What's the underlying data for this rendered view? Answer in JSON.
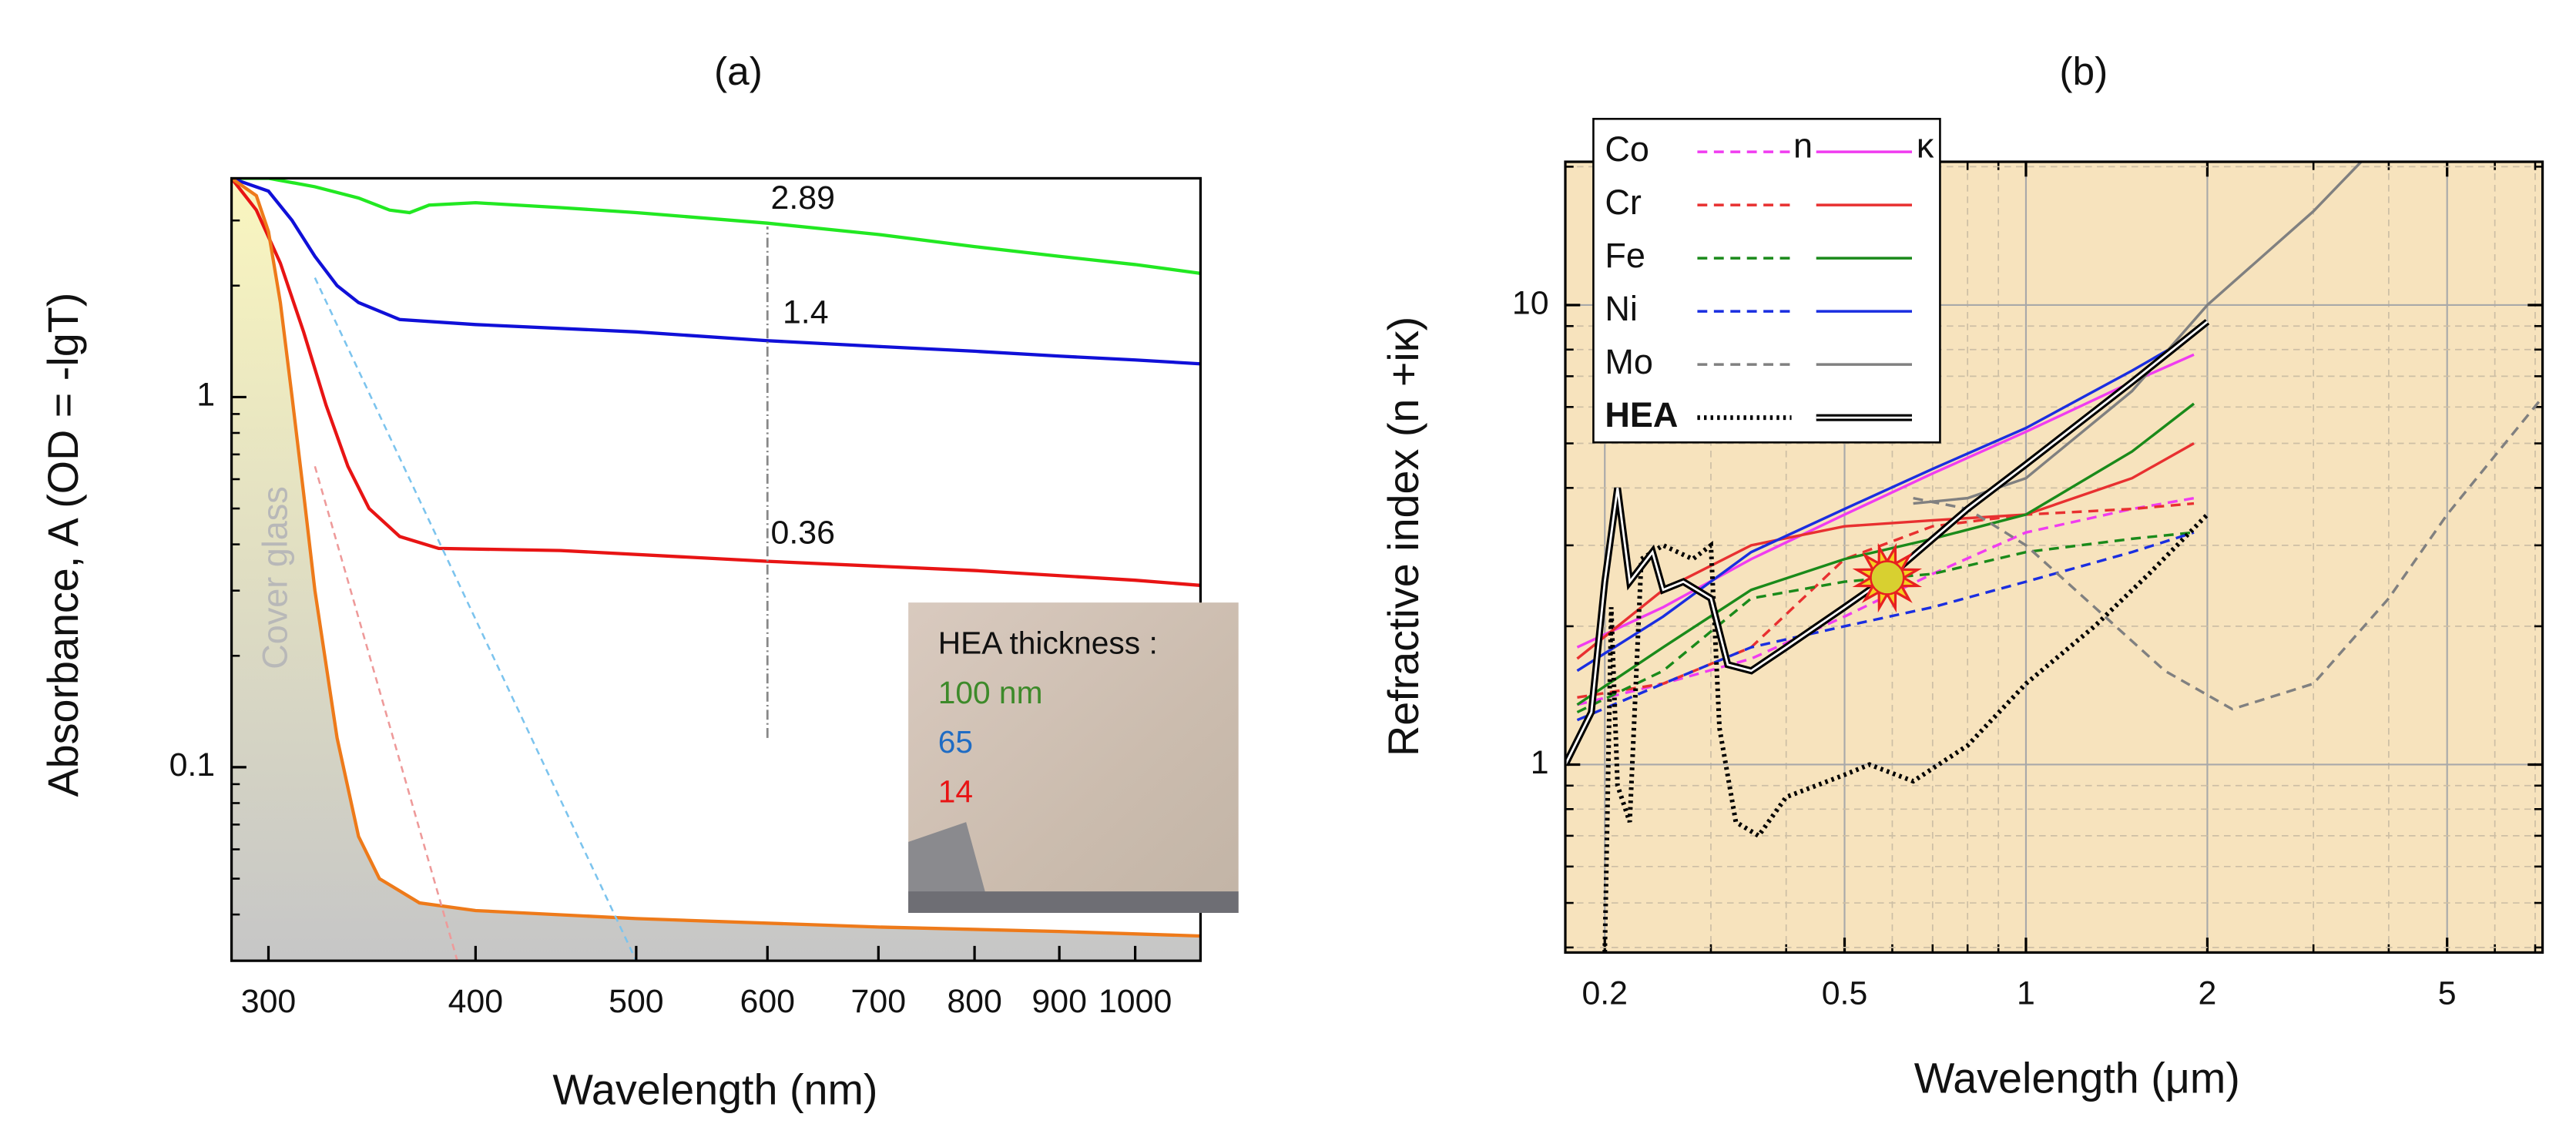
{
  "chart_data": [
    {
      "type": "line",
      "title": "(a)",
      "x_label": "Wavelength (nm)",
      "y_label": "Absorbance, A (OD = -lgT)",
      "xlog": true,
      "ylog": true,
      "xlim": [
        285,
        1095
      ],
      "ylim": [
        0.03,
        3.9
      ],
      "xticks": [
        300,
        400,
        500,
        600,
        700,
        800,
        900,
        1000
      ],
      "yticks": [
        0.1,
        1
      ],
      "yminorticks": [
        0.03,
        0.04,
        0.05,
        0.06,
        0.07,
        0.08,
        0.09,
        0.2,
        0.3,
        0.4,
        0.5,
        0.6,
        0.7,
        0.8,
        0.9,
        2,
        3
      ],
      "legend_title": "HEA thickness :",
      "legend": "lower right",
      "cover_label": "Cover glass",
      "series": [
        {
          "name": "100 nm",
          "color": "#22e822",
          "label_color": "#3d8a2a",
          "x": [
            285,
            300,
            320,
            340,
            355,
            365,
            375,
            400,
            450,
            500,
            600,
            700,
            800,
            900,
            1000,
            1094
          ],
          "values": [
            3.9,
            3.9,
            3.7,
            3.45,
            3.2,
            3.15,
            3.3,
            3.35,
            3.25,
            3.15,
            2.95,
            2.75,
            2.55,
            2.4,
            2.28,
            2.16
          ]
        },
        {
          "name": "65",
          "color": "#1010d8",
          "label_color": "#1f6cc4",
          "x": [
            285,
            300,
            310,
            320,
            330,
            340,
            360,
            400,
            500,
            600,
            700,
            800,
            900,
            1000,
            1094
          ],
          "values": [
            3.9,
            3.6,
            3.0,
            2.4,
            2.0,
            1.8,
            1.62,
            1.57,
            1.5,
            1.42,
            1.37,
            1.33,
            1.29,
            1.26,
            1.23
          ]
        },
        {
          "name": "14",
          "color": "#e81414",
          "label_color": "#e81414",
          "x": [
            285,
            295,
            305,
            315,
            325,
            335,
            345,
            360,
            380,
            450,
            600,
            800,
            1000,
            1094
          ],
          "values": [
            3.9,
            3.2,
            2.3,
            1.5,
            0.95,
            0.65,
            0.5,
            0.42,
            0.39,
            0.385,
            0.36,
            0.34,
            0.32,
            0.31
          ]
        },
        {
          "color": "#ee7a1a",
          "fill_gradient": [
            "#faf6bf",
            "#c6c6c6"
          ],
          "x": [
            285,
            295,
            300,
            305,
            310,
            315,
            320,
            330,
            340,
            350,
            370,
            400,
            500,
            700,
            900,
            1094
          ],
          "values": [
            3.9,
            3.5,
            2.8,
            1.8,
            1.0,
            0.55,
            0.3,
            0.12,
            0.065,
            0.05,
            0.043,
            0.041,
            0.039,
            0.037,
            0.036,
            0.035
          ]
        },
        {
          "color": "#7cc4ee",
          "dash": true,
          "x": [
            320,
            500
          ],
          "values": [
            2.1,
            0.03
          ]
        },
        {
          "color": "#ee9a9a",
          "dash": true,
          "x": [
            320,
            390
          ],
          "values": [
            0.65,
            0.03
          ]
        }
      ],
      "reference_line": {
        "x": 600,
        "y": [
          0.12,
          2.89
        ]
      },
      "annotations": [
        {
          "text": "2.89",
          "x": 600,
          "y": 2.89
        },
        {
          "text": "1.4",
          "x": 610,
          "y": 1.42
        },
        {
          "text": "0.36",
          "x": 600,
          "y": 0.36
        }
      ]
    },
    {
      "type": "line",
      "title": "(b)",
      "x_label": "Wavelength (μm)",
      "y_label": "Refractive index (n +iκ)",
      "xlog": true,
      "ylog": true,
      "grid": true,
      "background": "#f7e3bd",
      "xlim": [
        0.172,
        7.2
      ],
      "ylim": [
        0.39,
        20.5
      ],
      "xticks": [
        0.2,
        0.5,
        1,
        2,
        5
      ],
      "xminorticks": [
        0.3,
        0.4,
        0.6,
        0.7,
        0.8,
        0.9,
        3,
        4,
        6,
        7
      ],
      "yticks": [
        1,
        10
      ],
      "yminorticks": [
        0.4,
        0.5,
        0.6,
        0.7,
        0.8,
        0.9,
        2,
        3,
        4,
        5,
        6,
        7,
        8,
        9,
        20
      ],
      "legend": "upper left",
      "legend_headers": [
        "n",
        "κ"
      ],
      "series": [
        {
          "name": "Co",
          "color": "#f03cf0",
          "n_style": "dashed",
          "kappa_style": "solid",
          "x": [
            0.18,
            0.25,
            0.35,
            0.5,
            0.7,
            1,
            1.5,
            1.9
          ],
          "n": [
            1.35,
            1.5,
            1.7,
            2.1,
            2.6,
            3.2,
            3.6,
            3.8
          ],
          "kappa": [
            1.8,
            2.2,
            2.8,
            3.5,
            4.3,
            5.3,
            6.8,
            7.8
          ]
        },
        {
          "name": "Cr",
          "color": "#e83030",
          "n_style": "dashed",
          "kappa_style": "solid",
          "x": [
            0.18,
            0.25,
            0.35,
            0.5,
            0.7,
            1,
            1.5,
            1.9
          ],
          "n": [
            1.4,
            1.5,
            1.8,
            2.8,
            3.3,
            3.5,
            3.6,
            3.7
          ],
          "kappa": [
            1.7,
            2.4,
            3.0,
            3.3,
            3.4,
            3.5,
            4.2,
            5.0
          ]
        },
        {
          "name": "Fe",
          "color": "#1a8a1a",
          "n_style": "dashed",
          "kappa_style": "solid",
          "x": [
            0.18,
            0.25,
            0.35,
            0.5,
            0.7,
            1,
            1.5,
            1.9
          ],
          "n": [
            1.3,
            1.6,
            2.3,
            2.5,
            2.6,
            2.9,
            3.1,
            3.2
          ],
          "kappa": [
            1.35,
            1.8,
            2.4,
            2.8,
            3.1,
            3.5,
            4.8,
            6.1
          ]
        },
        {
          "name": "Ni",
          "color": "#1a2ee0",
          "n_style": "dashed",
          "kappa_style": "solid",
          "x": [
            0.18,
            0.25,
            0.35,
            0.5,
            0.7,
            1,
            1.5,
            1.9
          ],
          "n": [
            1.25,
            1.5,
            1.8,
            2.0,
            2.2,
            2.5,
            2.9,
            3.2
          ],
          "kappa": [
            1.6,
            2.1,
            2.9,
            3.6,
            4.4,
            5.4,
            7.2,
            8.6
          ]
        },
        {
          "name": "Mo",
          "color": "#808080",
          "n_style": "dashed",
          "kappa_style": "solid",
          "x_n": [
            0.65,
            0.8,
            1,
            1.3,
            1.7,
            2.2,
            3,
            4,
            5,
            7.2
          ],
          "n": [
            3.8,
            3.6,
            3.0,
            2.2,
            1.6,
            1.32,
            1.5,
            2.3,
            3.5,
            6.3
          ],
          "x_kappa": [
            0.65,
            0.8,
            1,
            1.5,
            2,
            3,
            3.6
          ],
          "kappa": [
            3.7,
            3.8,
            4.2,
            6.5,
            10,
            16,
            20.5
          ]
        },
        {
          "name": "HEA",
          "color": "#000000",
          "n_style": "dotted",
          "kappa_style": "double",
          "bold": true,
          "x_n": [
            0.2,
            0.205,
            0.21,
            0.22,
            0.23,
            0.25,
            0.28,
            0.3,
            0.31,
            0.33,
            0.36,
            0.4,
            0.5,
            0.55,
            0.65,
            0.8,
            1,
            1.3,
            1.6,
            2
          ],
          "n": [
            0.39,
            2.2,
            0.9,
            0.75,
            2.8,
            3.0,
            2.8,
            3.0,
            1.2,
            0.75,
            0.7,
            0.85,
            0.95,
            1.0,
            0.92,
            1.1,
            1.5,
            2.0,
            2.6,
            3.5
          ],
          "x_kappa": [
            0.172,
            0.19,
            0.2,
            0.21,
            0.22,
            0.24,
            0.25,
            0.27,
            0.3,
            0.32,
            0.35,
            0.4,
            0.5,
            0.6,
            0.8,
            1,
            1.5,
            2
          ],
          "kappa": [
            1.0,
            1.3,
            2.5,
            4.0,
            2.5,
            2.9,
            2.4,
            2.5,
            2.3,
            1.65,
            1.6,
            1.8,
            2.2,
            2.6,
            3.6,
            4.5,
            6.8,
            9.2
          ]
        }
      ]
    }
  ]
}
